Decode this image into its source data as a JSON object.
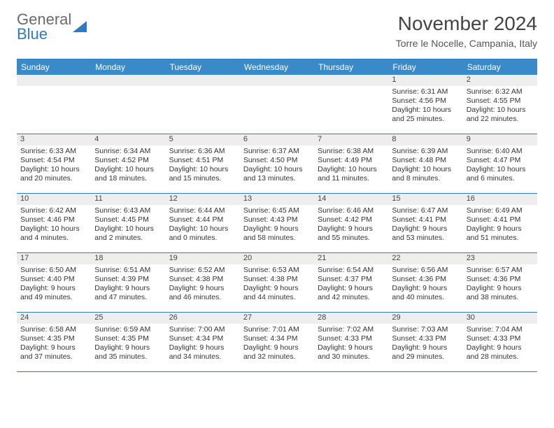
{
  "logo": {
    "line1": "General",
    "line2": "Blue"
  },
  "title": "November 2024",
  "location": "Torre le Nocelle, Campania, Italy",
  "colors": {
    "header_bg": "#3a8ac9",
    "border": "#2f7bbf",
    "daynum_bg": "#eeeeee",
    "text": "#333333"
  },
  "weekdays": [
    "Sunday",
    "Monday",
    "Tuesday",
    "Wednesday",
    "Thursday",
    "Friday",
    "Saturday"
  ],
  "weeks": [
    [
      null,
      null,
      null,
      null,
      null,
      {
        "n": "1",
        "sunrise": "6:31 AM",
        "sunset": "4:56 PM",
        "daylight": "10 hours and 25 minutes."
      },
      {
        "n": "2",
        "sunrise": "6:32 AM",
        "sunset": "4:55 PM",
        "daylight": "10 hours and 22 minutes."
      }
    ],
    [
      {
        "n": "3",
        "sunrise": "6:33 AM",
        "sunset": "4:54 PM",
        "daylight": "10 hours and 20 minutes."
      },
      {
        "n": "4",
        "sunrise": "6:34 AM",
        "sunset": "4:52 PM",
        "daylight": "10 hours and 18 minutes."
      },
      {
        "n": "5",
        "sunrise": "6:36 AM",
        "sunset": "4:51 PM",
        "daylight": "10 hours and 15 minutes."
      },
      {
        "n": "6",
        "sunrise": "6:37 AM",
        "sunset": "4:50 PM",
        "daylight": "10 hours and 13 minutes."
      },
      {
        "n": "7",
        "sunrise": "6:38 AM",
        "sunset": "4:49 PM",
        "daylight": "10 hours and 11 minutes."
      },
      {
        "n": "8",
        "sunrise": "6:39 AM",
        "sunset": "4:48 PM",
        "daylight": "10 hours and 8 minutes."
      },
      {
        "n": "9",
        "sunrise": "6:40 AM",
        "sunset": "4:47 PM",
        "daylight": "10 hours and 6 minutes."
      }
    ],
    [
      {
        "n": "10",
        "sunrise": "6:42 AM",
        "sunset": "4:46 PM",
        "daylight": "10 hours and 4 minutes."
      },
      {
        "n": "11",
        "sunrise": "6:43 AM",
        "sunset": "4:45 PM",
        "daylight": "10 hours and 2 minutes."
      },
      {
        "n": "12",
        "sunrise": "6:44 AM",
        "sunset": "4:44 PM",
        "daylight": "10 hours and 0 minutes."
      },
      {
        "n": "13",
        "sunrise": "6:45 AM",
        "sunset": "4:43 PM",
        "daylight": "9 hours and 58 minutes."
      },
      {
        "n": "14",
        "sunrise": "6:46 AM",
        "sunset": "4:42 PM",
        "daylight": "9 hours and 55 minutes."
      },
      {
        "n": "15",
        "sunrise": "6:47 AM",
        "sunset": "4:41 PM",
        "daylight": "9 hours and 53 minutes."
      },
      {
        "n": "16",
        "sunrise": "6:49 AM",
        "sunset": "4:41 PM",
        "daylight": "9 hours and 51 minutes."
      }
    ],
    [
      {
        "n": "17",
        "sunrise": "6:50 AM",
        "sunset": "4:40 PM",
        "daylight": "9 hours and 49 minutes."
      },
      {
        "n": "18",
        "sunrise": "6:51 AM",
        "sunset": "4:39 PM",
        "daylight": "9 hours and 47 minutes."
      },
      {
        "n": "19",
        "sunrise": "6:52 AM",
        "sunset": "4:38 PM",
        "daylight": "9 hours and 46 minutes."
      },
      {
        "n": "20",
        "sunrise": "6:53 AM",
        "sunset": "4:38 PM",
        "daylight": "9 hours and 44 minutes."
      },
      {
        "n": "21",
        "sunrise": "6:54 AM",
        "sunset": "4:37 PM",
        "daylight": "9 hours and 42 minutes."
      },
      {
        "n": "22",
        "sunrise": "6:56 AM",
        "sunset": "4:36 PM",
        "daylight": "9 hours and 40 minutes."
      },
      {
        "n": "23",
        "sunrise": "6:57 AM",
        "sunset": "4:36 PM",
        "daylight": "9 hours and 38 minutes."
      }
    ],
    [
      {
        "n": "24",
        "sunrise": "6:58 AM",
        "sunset": "4:35 PM",
        "daylight": "9 hours and 37 minutes."
      },
      {
        "n": "25",
        "sunrise": "6:59 AM",
        "sunset": "4:35 PM",
        "daylight": "9 hours and 35 minutes."
      },
      {
        "n": "26",
        "sunrise": "7:00 AM",
        "sunset": "4:34 PM",
        "daylight": "9 hours and 34 minutes."
      },
      {
        "n": "27",
        "sunrise": "7:01 AM",
        "sunset": "4:34 PM",
        "daylight": "9 hours and 32 minutes."
      },
      {
        "n": "28",
        "sunrise": "7:02 AM",
        "sunset": "4:33 PM",
        "daylight": "9 hours and 30 minutes."
      },
      {
        "n": "29",
        "sunrise": "7:03 AM",
        "sunset": "4:33 PM",
        "daylight": "9 hours and 29 minutes."
      },
      {
        "n": "30",
        "sunrise": "7:04 AM",
        "sunset": "4:33 PM",
        "daylight": "9 hours and 28 minutes."
      }
    ]
  ],
  "labels": {
    "sunrise_prefix": "Sunrise: ",
    "sunset_prefix": "Sunset: ",
    "daylight_prefix": "Daylight: "
  }
}
